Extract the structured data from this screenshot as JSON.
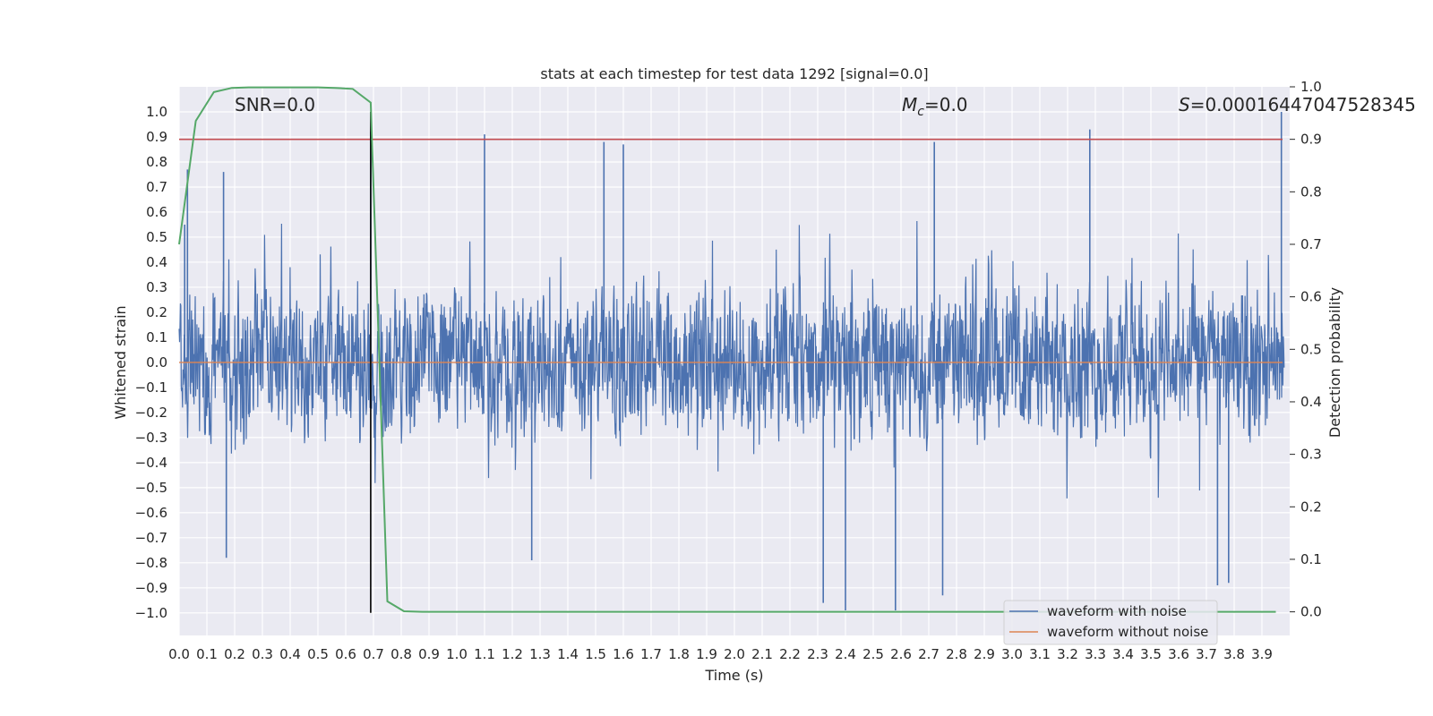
{
  "chart_data": {
    "type": "line",
    "title": "stats at each timestep for test data 1292 [signal=0.0]",
    "xlabel": "Time (s)",
    "ylabel_left": "Whitened strain",
    "ylabel_right": "Detection probability",
    "xlim": [
      0.0,
      4.0
    ],
    "ylim_left": [
      -1.09,
      1.1
    ],
    "ylim_right": [
      -0.045,
      1.0
    ],
    "x_ticks": [
      "0.0",
      "0.1",
      "0.2",
      "0.3",
      "0.4",
      "0.5",
      "0.6",
      "0.7",
      "0.8",
      "0.9",
      "1.0",
      "1.1",
      "1.2",
      "1.3",
      "1.4",
      "1.5",
      "1.6",
      "1.7",
      "1.8",
      "1.9",
      "2.0",
      "2.1",
      "2.2",
      "2.3",
      "2.4",
      "2.5",
      "2.6",
      "2.7",
      "2.8",
      "2.9",
      "3.0",
      "3.1",
      "3.2",
      "3.3",
      "3.4",
      "3.5",
      "3.6",
      "3.7",
      "3.8",
      "3.9"
    ],
    "y_ticks_left": [
      "1.0",
      "0.9",
      "0.8",
      "0.7",
      "0.6",
      "0.5",
      "0.4",
      "0.3",
      "0.2",
      "0.1",
      "0.0",
      "−0.1",
      "−0.2",
      "−0.3",
      "−0.4",
      "−0.5",
      "−0.6",
      "−0.7",
      "−0.8",
      "−0.9",
      "−1.0"
    ],
    "y_ticks_right": [
      "1.0",
      "0.9",
      "0.8",
      "0.7",
      "0.6",
      "0.5",
      "0.4",
      "0.3",
      "0.2",
      "0.1",
      "0.0"
    ],
    "annotations": {
      "snr": "SNR=0.0",
      "mc_symbol": "M",
      "mc_sub": "c",
      "mc_value": "=0.0",
      "s_symbol": "S",
      "s_value": "=0.00016447047528345"
    },
    "threshold_line": {
      "axis": "right",
      "value": 0.9,
      "color": "#c44e52"
    },
    "zero_line": {
      "axis": "left",
      "value": 0.0,
      "color": "#dd8452"
    },
    "marker_line": {
      "x": 0.69,
      "y_range": [
        -1.0,
        1.0
      ],
      "color": "#000000"
    },
    "series": [
      {
        "name": "waveform with noise",
        "axis": "left",
        "color": "#4c72b0",
        "description": "dense noisy whitened strain, approx. range -1.0 to 1.0",
        "peaks": [
          {
            "x": 0.02,
            "y": 0.55
          },
          {
            "x": 0.03,
            "y": 0.77
          },
          {
            "x": 0.16,
            "y": 0.76
          },
          {
            "x": 0.69,
            "y": 0.92
          },
          {
            "x": 1.1,
            "y": 0.91
          },
          {
            "x": 1.53,
            "y": 0.88
          },
          {
            "x": 1.6,
            "y": 0.87
          },
          {
            "x": 2.72,
            "y": 0.88
          },
          {
            "x": 3.28,
            "y": 0.93
          },
          {
            "x": 3.97,
            "y": 1.0
          }
        ],
        "troughs": [
          {
            "x": 0.17,
            "y": -0.78
          },
          {
            "x": 1.27,
            "y": -0.79
          },
          {
            "x": 2.32,
            "y": -0.96
          },
          {
            "x": 2.4,
            "y": -0.99
          },
          {
            "x": 2.58,
            "y": -0.99
          },
          {
            "x": 2.75,
            "y": -0.93
          },
          {
            "x": 3.74,
            "y": -0.89
          },
          {
            "x": 3.78,
            "y": -0.88
          }
        ]
      },
      {
        "name": "waveform without noise",
        "axis": "left",
        "color": "#dd8452",
        "x": [
          0.0,
          4.0
        ],
        "y": [
          0.0,
          0.0
        ]
      },
      {
        "name": "detection probability",
        "axis": "right",
        "color": "#55a868",
        "x": [
          0.0,
          0.06,
          0.125,
          0.19,
          0.25,
          0.31,
          0.375,
          0.44,
          0.5,
          0.56,
          0.625,
          0.69,
          0.75,
          0.81,
          0.875,
          1.0,
          1.5,
          2.0,
          2.5,
          3.0,
          3.5,
          3.95
        ],
        "y": [
          0.7,
          0.935,
          0.99,
          0.998,
          0.999,
          0.999,
          0.999,
          0.999,
          0.999,
          0.998,
          0.996,
          0.97,
          0.02,
          0.001,
          0.0,
          0.0,
          0.0,
          0.0,
          0.0,
          0.0,
          0.0,
          0.0
        ]
      }
    ],
    "legend": {
      "position": "lower-right",
      "entries": [
        {
          "label": "waveform with noise",
          "color": "#4c72b0"
        },
        {
          "label": "waveform without noise",
          "color": "#dd8452"
        }
      ]
    }
  }
}
